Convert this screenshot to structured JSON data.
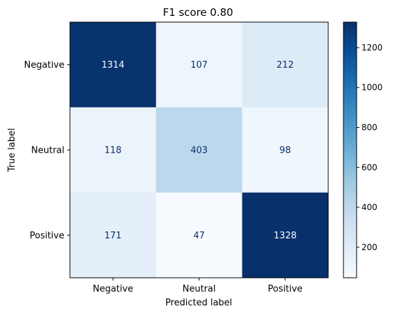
{
  "chart_data": {
    "type": "heatmap",
    "title": "F1 score 0.80",
    "xlabel": "Predicted label",
    "ylabel": "True label",
    "x_categories": [
      "Negative",
      "Neutral",
      "Positive"
    ],
    "y_categories": [
      "Negative",
      "Neutral",
      "Positive"
    ],
    "values": [
      [
        1314,
        107,
        212
      ],
      [
        118,
        403,
        98
      ],
      [
        171,
        47,
        1328
      ]
    ],
    "colormap": "Blues",
    "colorbar": {
      "ticks": [
        200,
        400,
        600,
        800,
        1000,
        1200
      ],
      "range": [
        47,
        1328
      ]
    },
    "colors": {
      "low": "#f7fbff",
      "high": "#08306b",
      "text_dark": "#08306b",
      "text_light": "#f7fbff"
    }
  }
}
